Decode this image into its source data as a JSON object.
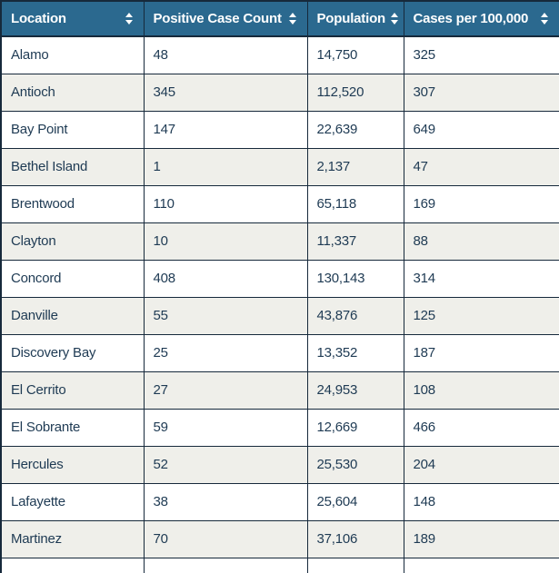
{
  "table": {
    "columns": [
      {
        "label": "Location",
        "sortable": true
      },
      {
        "label": "Positive Case Count",
        "sortable": true
      },
      {
        "label": "Population",
        "sortable": true
      },
      {
        "label": "Cases per 100,000",
        "sortable": true
      }
    ],
    "rows": [
      [
        "Alamo",
        "48",
        "14,750",
        "325"
      ],
      [
        "Antioch",
        "345",
        "112,520",
        "307"
      ],
      [
        "Bay Point",
        "147",
        "22,639",
        "649"
      ],
      [
        "Bethel Island",
        "1",
        "2,137",
        "47"
      ],
      [
        "Brentwood",
        "110",
        "65,118",
        "169"
      ],
      [
        "Clayton",
        "10",
        "11,337",
        "88"
      ],
      [
        "Concord",
        "408",
        "130,143",
        "314"
      ],
      [
        "Danville",
        "55",
        "43,876",
        "125"
      ],
      [
        "Discovery Bay",
        "25",
        "13,352",
        "187"
      ],
      [
        "El Cerrito",
        "27",
        "24,953",
        "108"
      ],
      [
        "El Sobrante",
        "59",
        "12,669",
        "466"
      ],
      [
        "Hercules",
        "52",
        "25,530",
        "204"
      ],
      [
        "Lafayette",
        "38",
        "25,604",
        "148"
      ],
      [
        "Martinez",
        "70",
        "37,106",
        "189"
      ]
    ]
  },
  "icons": {
    "sort": "sort-toggle-icon"
  },
  "colors": {
    "header_bg": "#2B698F",
    "header_text": "#FFFFFF",
    "border": "#16293B",
    "row_bg": "#FFFFFF",
    "row_alt_bg": "#EFEFEA",
    "cell_text": "#1E3A53"
  }
}
